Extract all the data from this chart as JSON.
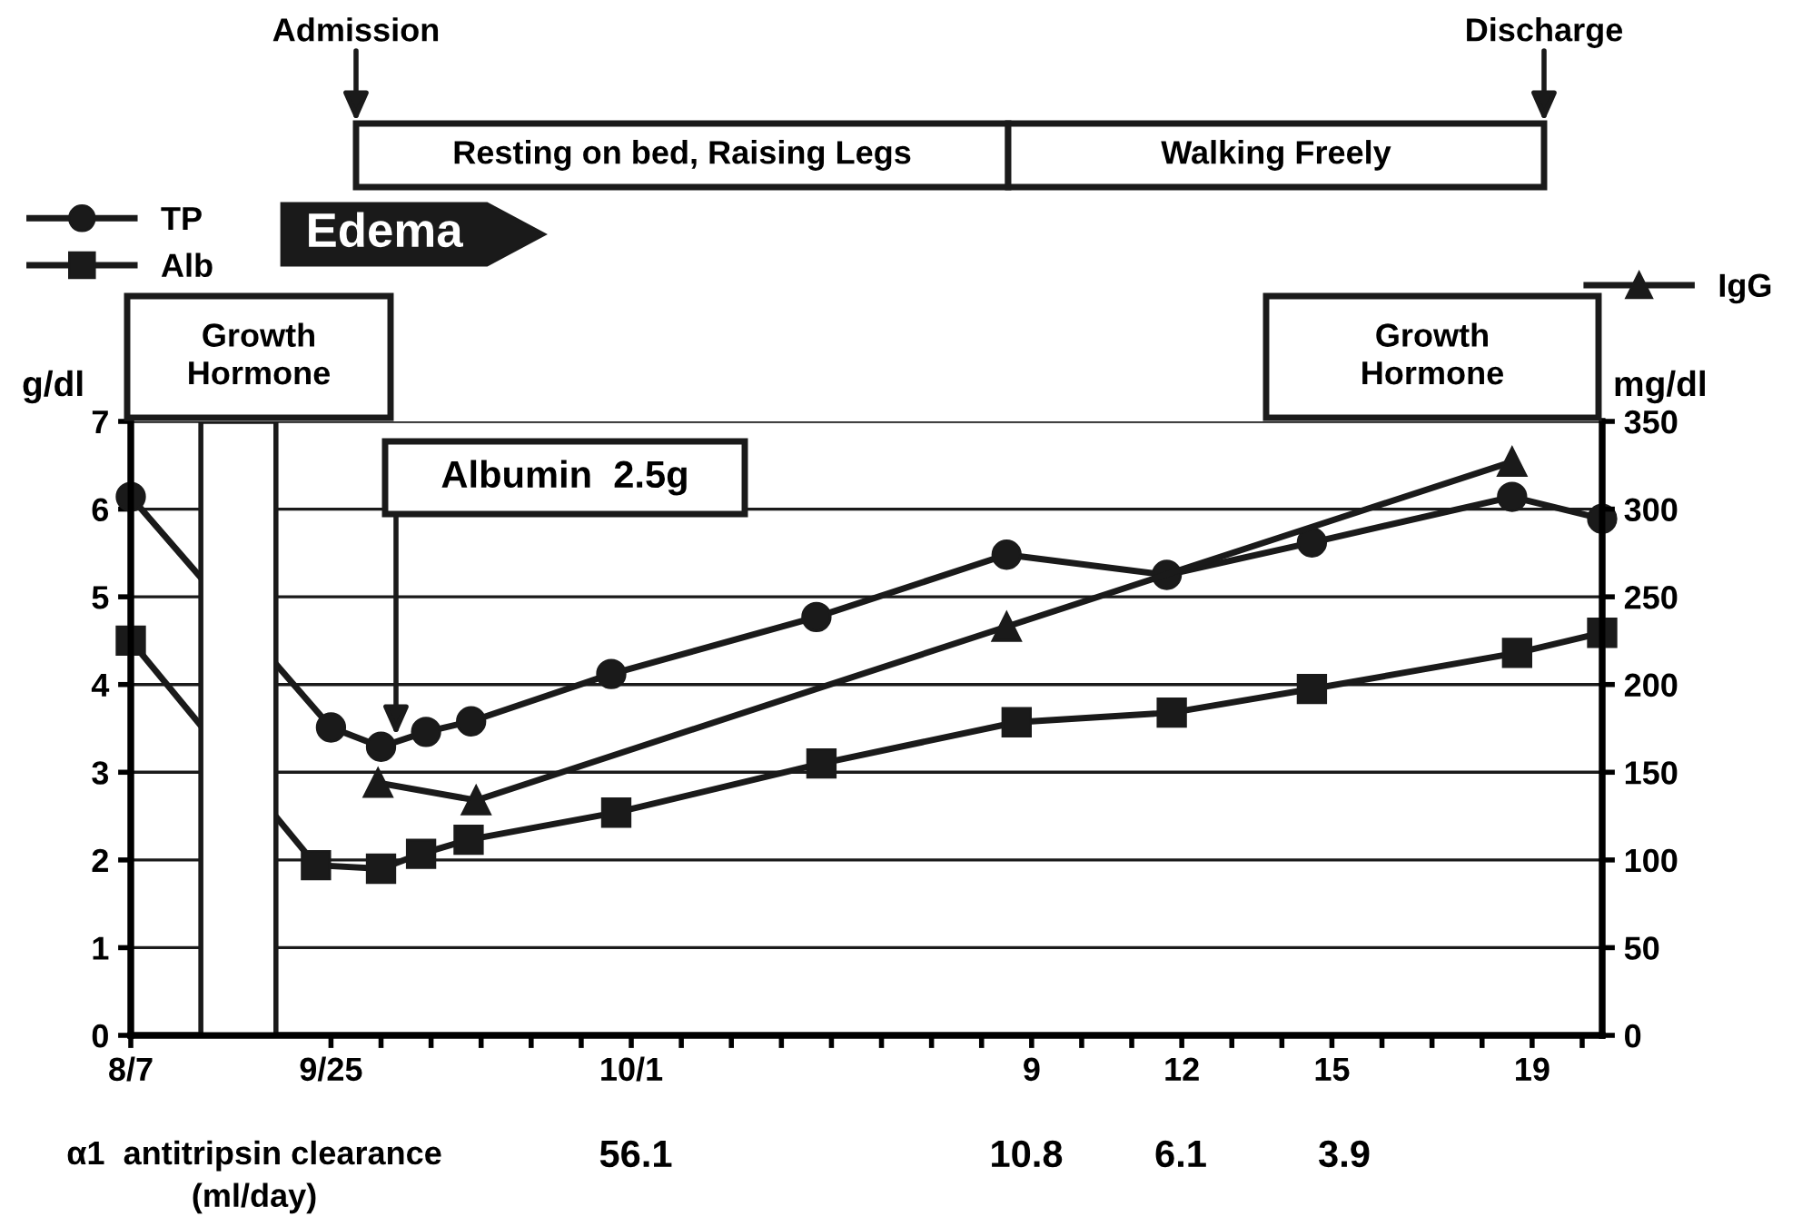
{
  "chart_data": {
    "type": "line",
    "xlim": [
      -9,
      20.4
    ],
    "xticks": [
      {
        "value": -9,
        "label": "8/7"
      },
      {
        "value": -5,
        "label": "9/25"
      },
      {
        "value": -4,
        "label": null
      },
      {
        "value": -3,
        "label": null
      },
      {
        "value": -2,
        "label": null
      },
      {
        "value": -1,
        "label": null
      },
      {
        "value": 0,
        "label": null
      },
      {
        "value": 1,
        "label": "10/1"
      },
      {
        "value": 2,
        "label": null
      },
      {
        "value": 3,
        "label": null
      },
      {
        "value": 4,
        "label": null
      },
      {
        "value": 5,
        "label": null
      },
      {
        "value": 6,
        "label": null
      },
      {
        "value": 7,
        "label": null
      },
      {
        "value": 8,
        "label": null
      },
      9,
      {
        "value": 10,
        "label": null
      },
      {
        "value": 11,
        "label": null
      },
      12,
      {
        "value": 13,
        "label": null
      },
      {
        "value": 14,
        "label": null
      },
      15,
      {
        "value": 16,
        "label": null
      },
      {
        "value": 17,
        "label": null
      },
      {
        "value": 18,
        "label": null
      },
      19,
      {
        "value": 20,
        "label": null
      }
    ],
    "ylim": [
      0,
      7
    ],
    "yticks": [
      0,
      1,
      2,
      3,
      4,
      5,
      6,
      7
    ],
    "y2lim": [
      0,
      350
    ],
    "y2ticks": [
      0,
      50,
      100,
      150,
      200,
      250,
      300,
      350
    ],
    "ylabel": "g/dl",
    "y2label": "mg/dl",
    "grid": "y",
    "legend": "top",
    "line_style": "solid",
    "series": [
      {
        "name": "TP",
        "color": "#1a1a1a",
        "marker": "circle",
        "x": [
          -9,
          -5,
          -4,
          -3.1,
          -2.2,
          0.6,
          4.7,
          8.5,
          11.7,
          14.6,
          18.6,
          20.4
        ],
        "values": [
          6.14,
          3.51,
          3.29,
          3.46,
          3.58,
          4.12,
          4.77,
          5.48,
          5.25,
          5.62,
          6.14,
          5.89
        ]
      },
      {
        "name": "Alb",
        "color": "#1a1a1a",
        "marker": "square",
        "x": [
          -9,
          -5.3,
          -4,
          -3.2,
          -2.25,
          0.7,
          4.8,
          8.7,
          11.8,
          14.6,
          18.7,
          20.4
        ],
        "values": [
          4.5,
          1.94,
          1.9,
          2.07,
          2.23,
          2.54,
          3.1,
          3.57,
          3.68,
          3.95,
          4.36,
          4.59
        ]
      },
      {
        "name": "IgG",
        "color": "#1a1a1a",
        "marker": "triangle",
        "axis": "y2",
        "x": [
          -4.06,
          -2.1,
          8.5,
          18.6
        ],
        "values": [
          144,
          134,
          233,
          327
        ]
      }
    ],
    "bands": [
      {
        "axis": "x",
        "from": -7.6,
        "to": -6.1,
        "color": "#ffffff"
      }
    ],
    "annotations": [
      "Admission",
      "Discharge",
      "Resting on bed, Raising Legs",
      "Walking Freely",
      "Edema",
      "Growth\nHormone",
      "Growth\nHormone",
      "Albumin  2.5g",
      "α1  antitripsin clearance\n(ml/day)",
      "56.1",
      "10.8",
      "6.1",
      "3.9"
    ]
  }
}
